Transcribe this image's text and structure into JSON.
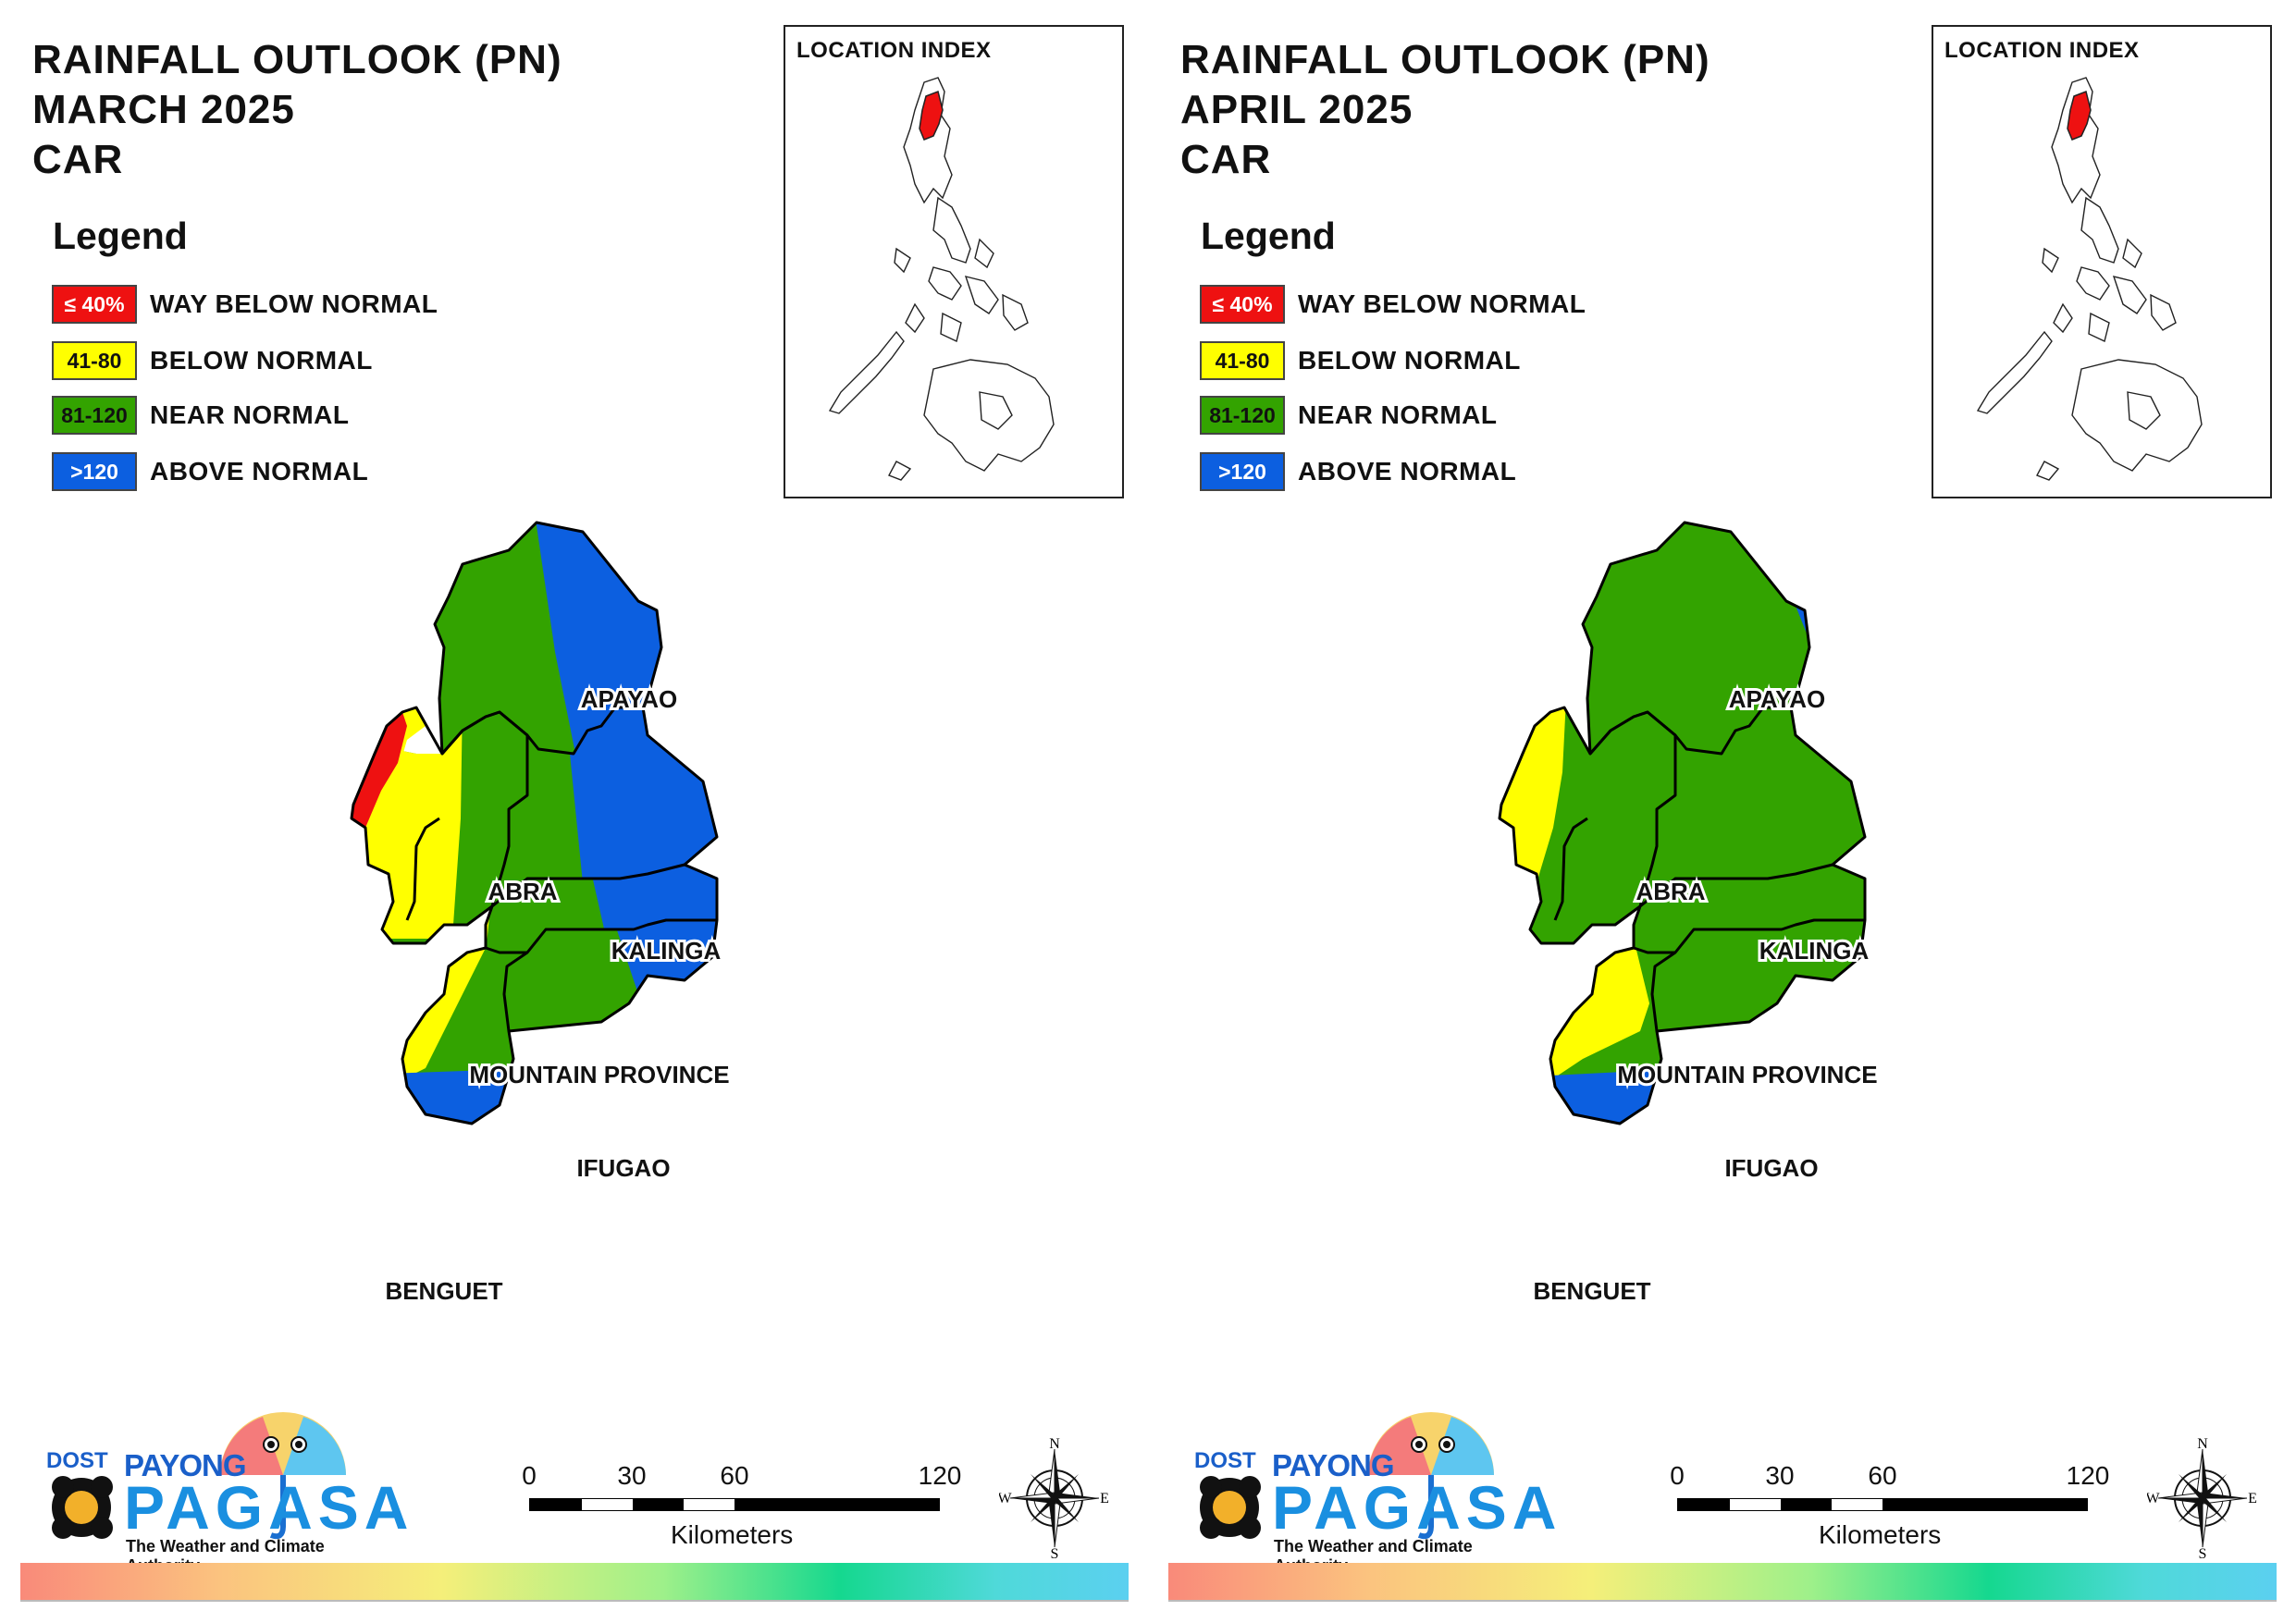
{
  "colors": {
    "way_below": "#ee1111",
    "below": "#ffff00",
    "near": "#33a300",
    "above": "#0c5fe0",
    "boundary": "#000000"
  },
  "legend": {
    "title": "Legend",
    "items": [
      {
        "range": "≤ 40%",
        "label": "WAY BELOW NORMAL",
        "color": "#ee1111",
        "text_color": "#ffffff"
      },
      {
        "range": "41-80",
        "label": "BELOW NORMAL",
        "color": "#ffff00",
        "text_color": "#111111"
      },
      {
        "range": "81-120",
        "label": "NEAR NORMAL",
        "color": "#33a300",
        "text_color": "#111111"
      },
      {
        "range": ">120",
        "label": "ABOVE NORMAL",
        "color": "#0c5fe0",
        "text_color": "#ffffff"
      }
    ]
  },
  "inset": {
    "title": "LOCATION INDEX"
  },
  "province_labels": {
    "apayao": "APAYAO",
    "abra": "ABRA",
    "kalinga": "KALINGA",
    "mountain_province": "MOUNTAIN PROVINCE",
    "ifugao": "IFUGAO",
    "benguet": "BENGUET"
  },
  "scale": {
    "ticks": [
      "0",
      "30",
      "60",
      "120"
    ],
    "unit": "Kilometers"
  },
  "compass": {
    "n": "N",
    "s": "S",
    "e": "E",
    "w": "W"
  },
  "logo": {
    "dost": "DOST",
    "payong": "PAYONG",
    "pagasa": "PAGASA",
    "tagline": "The Weather and Climate Authority"
  },
  "panels": [
    {
      "title_line1": "RAINFALL OUTLOOK (PN)",
      "title_line2": "MARCH 2025",
      "title_line3": "CAR",
      "zones": {
        "apayao_east": "above",
        "abra_west_tip": "way_below",
        "abra_west": "below",
        "benguet_west": "below",
        "benguet_south": "above",
        "kalinga_east": "above",
        "mtprov_east": "above"
      }
    },
    {
      "title_line1": "RAINFALL OUTLOOK (PN)",
      "title_line2": "APRIL 2025",
      "title_line3": "CAR",
      "zones": {
        "apayao_east": "above_small",
        "abra_west_tip": "below",
        "abra_west": "below_small",
        "benguet_west": "below",
        "benguet_south": "above",
        "kalinga_east": "near",
        "mtprov_east": "near"
      }
    }
  ]
}
